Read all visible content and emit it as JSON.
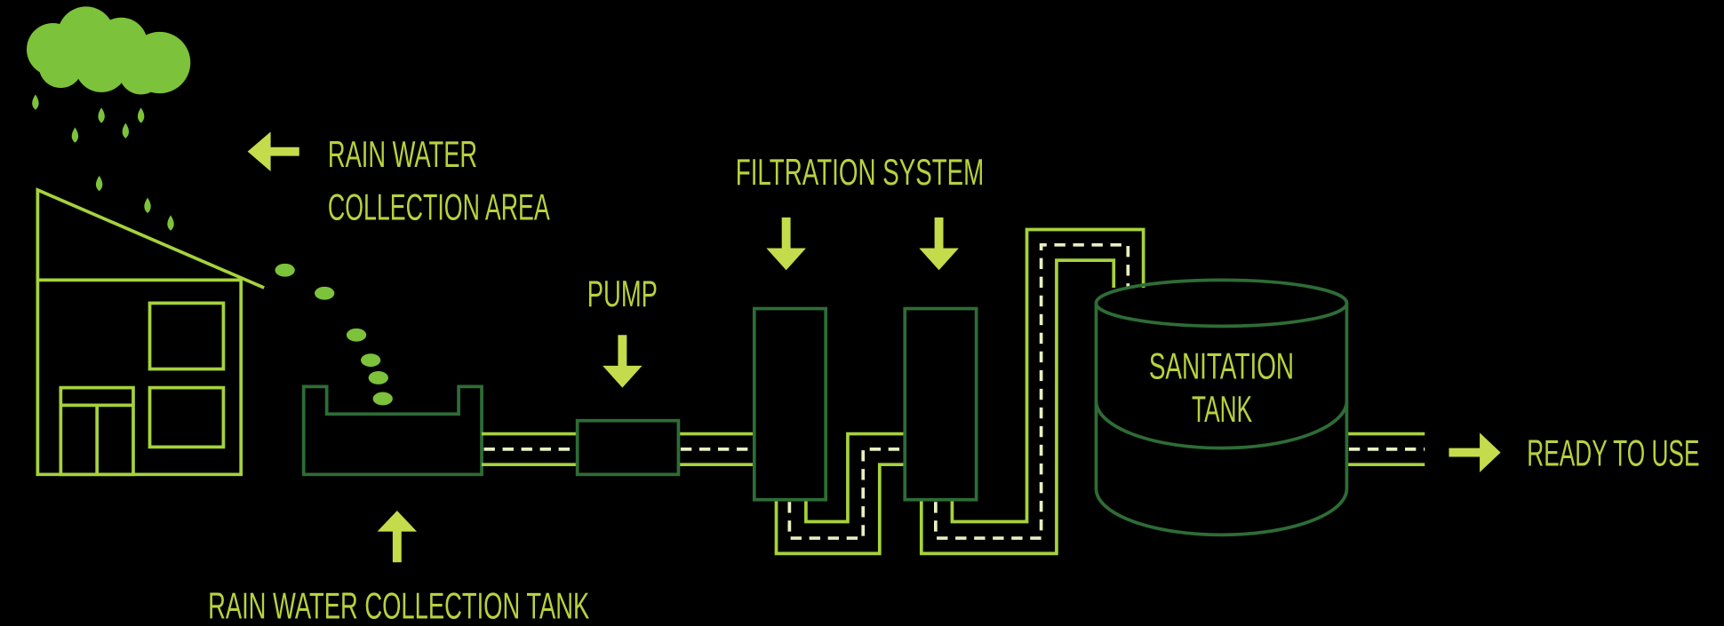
{
  "labels": {
    "collection_area": [
      "RAIN WATER",
      "COLLECTION AREA"
    ],
    "filtration": "FILTRATION SYSTEM",
    "pump": "PUMP",
    "sanitation_tank": [
      "SANITATION",
      "TANK"
    ],
    "ready": "READY TO USE",
    "collection_tank": "RAIN WATER COLLECTION TANK"
  }
}
